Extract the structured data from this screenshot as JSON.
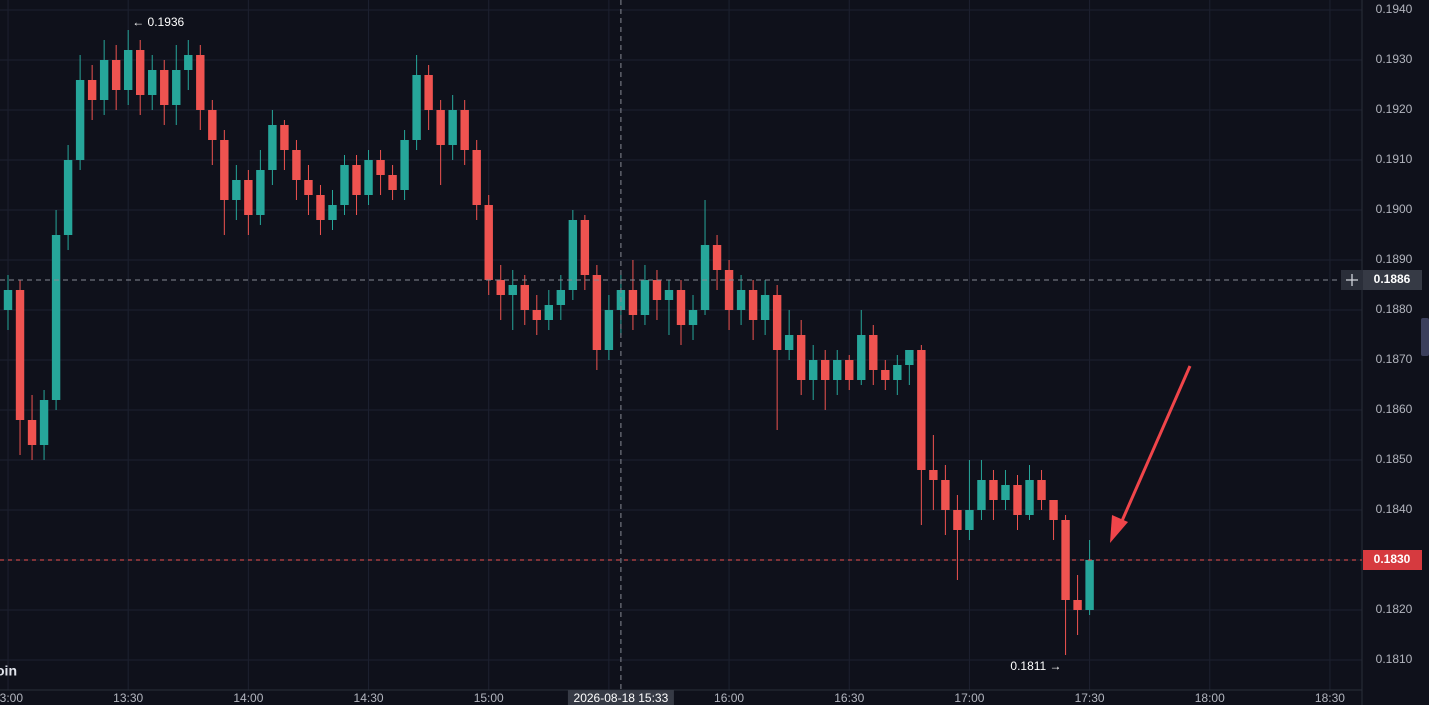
{
  "chart_data": {
    "type": "candlestick",
    "watermark": "oin",
    "colors": {
      "up": "#26a69a",
      "down": "#ef5350"
    },
    "x": [
      "13:00",
      "13:03",
      "13:06",
      "13:09",
      "13:12",
      "13:15",
      "13:18",
      "13:21",
      "13:24",
      "13:27",
      "13:30",
      "13:33",
      "13:36",
      "13:39",
      "13:42",
      "13:45",
      "13:48",
      "13:51",
      "13:54",
      "13:57",
      "14:00",
      "14:03",
      "14:06",
      "14:09",
      "14:12",
      "14:15",
      "14:18",
      "14:21",
      "14:24",
      "14:27",
      "14:30",
      "14:33",
      "14:36",
      "14:39",
      "14:42",
      "14:45",
      "14:48",
      "14:51",
      "14:54",
      "14:57",
      "15:00",
      "15:03",
      "15:06",
      "15:09",
      "15:12",
      "15:15",
      "15:18",
      "15:21",
      "15:24",
      "15:27",
      "15:30",
      "15:33",
      "15:36",
      "15:39",
      "15:42",
      "15:45",
      "15:48",
      "15:51",
      "15:54",
      "15:57",
      "16:00",
      "16:03",
      "16:06",
      "16:09",
      "16:12",
      "16:15",
      "16:18",
      "16:21",
      "16:24",
      "16:27",
      "16:30",
      "16:33",
      "16:36",
      "16:39",
      "16:42",
      "16:45",
      "16:48",
      "16:51",
      "16:54",
      "16:57",
      "17:00",
      "17:03",
      "17:06",
      "17:09",
      "17:12",
      "17:15",
      "17:18",
      "17:21",
      "17:24",
      "17:27",
      "17:30"
    ],
    "open": [
      0.188,
      0.1884,
      0.1858,
      0.1853,
      0.1862,
      0.1895,
      0.191,
      0.1926,
      0.1922,
      0.193,
      0.1924,
      0.1932,
      0.1923,
      0.1928,
      0.1921,
      0.1928,
      0.1931,
      0.192,
      0.1914,
      0.1902,
      0.1906,
      0.1899,
      0.1908,
      0.1917,
      0.1912,
      0.1906,
      0.1903,
      0.1898,
      0.1901,
      0.1909,
      0.1903,
      0.191,
      0.1907,
      0.1904,
      0.1914,
      0.1927,
      0.192,
      0.1913,
      0.192,
      0.1912,
      0.1901,
      0.1886,
      0.1883,
      0.1885,
      0.188,
      0.1878,
      0.1881,
      0.1884,
      0.1898,
      0.1887,
      0.1872,
      0.188,
      0.1884,
      0.1879,
      0.1886,
      0.1882,
      0.1884,
      0.1877,
      0.188,
      0.1893,
      0.1888,
      0.188,
      0.1884,
      0.1878,
      0.1883,
      0.1872,
      0.1875,
      0.1866,
      0.187,
      0.1866,
      0.187,
      0.1866,
      0.1875,
      0.1868,
      0.1866,
      0.1869,
      0.1872,
      0.1848,
      0.1846,
      0.184,
      0.1836,
      0.184,
      0.1846,
      0.1842,
      0.1845,
      0.1839,
      0.1846,
      0.1842,
      0.1838,
      0.1822,
      0.182
    ],
    "high": [
      0.1887,
      0.1886,
      0.1863,
      0.1864,
      0.19,
      0.1913,
      0.1931,
      0.1929,
      0.1934,
      0.1933,
      0.1936,
      0.1934,
      0.1931,
      0.193,
      0.1933,
      0.1934,
      0.1933,
      0.1922,
      0.1916,
      0.1909,
      0.1908,
      0.1912,
      0.192,
      0.1918,
      0.1914,
      0.1909,
      0.1905,
      0.1904,
      0.1911,
      0.1911,
      0.1912,
      0.1912,
      0.1909,
      0.1916,
      0.1931,
      0.1929,
      0.1922,
      0.1923,
      0.1922,
      0.1914,
      0.1903,
      0.1889,
      0.1888,
      0.1887,
      0.1883,
      0.1884,
      0.1887,
      0.19,
      0.1899,
      0.1889,
      0.1883,
      0.1887,
      0.189,
      0.1889,
      0.1888,
      0.1886,
      0.1886,
      0.1883,
      0.1902,
      0.1895,
      0.189,
      0.1887,
      0.1886,
      0.1886,
      0.1885,
      0.188,
      0.1878,
      0.1873,
      0.1872,
      0.1872,
      0.1871,
      0.188,
      0.1877,
      0.187,
      0.1871,
      0.1872,
      0.1873,
      0.1855,
      0.1849,
      0.1843,
      0.185,
      0.185,
      0.1848,
      0.1848,
      0.1847,
      0.1849,
      0.1848,
      0.1841,
      0.1839,
      0.1827,
      0.1834
    ],
    "low": [
      0.1876,
      0.1851,
      0.185,
      0.185,
      0.186,
      0.1892,
      0.1908,
      0.1918,
      0.1919,
      0.192,
      0.1921,
      0.1919,
      0.192,
      0.1917,
      0.1917,
      0.1924,
      0.1916,
      0.1909,
      0.1895,
      0.1898,
      0.1895,
      0.1897,
      0.1905,
      0.1908,
      0.1902,
      0.1899,
      0.1895,
      0.1896,
      0.1899,
      0.1899,
      0.1901,
      0.1903,
      0.1902,
      0.1902,
      0.1912,
      0.1916,
      0.1905,
      0.191,
      0.1909,
      0.1898,
      0.1883,
      0.1878,
      0.1876,
      0.1877,
      0.1875,
      0.1876,
      0.1878,
      0.1882,
      0.1884,
      0.1868,
      0.187,
      0.1875,
      0.1876,
      0.1877,
      0.1878,
      0.1875,
      0.1873,
      0.1874,
      0.1879,
      0.1884,
      0.1876,
      0.1877,
      0.1874,
      0.1875,
      0.1856,
      0.187,
      0.1863,
      0.1862,
      0.186,
      0.1863,
      0.1864,
      0.1865,
      0.1865,
      0.1864,
      0.1863,
      0.1865,
      0.1837,
      0.184,
      0.1835,
      0.1826,
      0.1834,
      0.1838,
      0.1838,
      0.184,
      0.1836,
      0.1838,
      0.184,
      0.1834,
      0.1811,
      0.1815,
      0.1819
    ],
    "close": [
      0.1884,
      0.1858,
      0.1853,
      0.1862,
      0.1895,
      0.191,
      0.1926,
      0.1922,
      0.193,
      0.1924,
      0.1932,
      0.1923,
      0.1928,
      0.1921,
      0.1928,
      0.1931,
      0.192,
      0.1914,
      0.1902,
      0.1906,
      0.1899,
      0.1908,
      0.1917,
      0.1912,
      0.1906,
      0.1903,
      0.1898,
      0.1901,
      0.1909,
      0.1903,
      0.191,
      0.1907,
      0.1904,
      0.1914,
      0.1927,
      0.192,
      0.1913,
      0.192,
      0.1912,
      0.1901,
      0.1886,
      0.1883,
      0.1885,
      0.188,
      0.1878,
      0.1881,
      0.1884,
      0.1898,
      0.1887,
      0.1872,
      0.188,
      0.1884,
      0.1879,
      0.1886,
      0.1882,
      0.1884,
      0.1877,
      0.188,
      0.1893,
      0.1888,
      0.188,
      0.1884,
      0.1878,
      0.1883,
      0.1872,
      0.1875,
      0.1866,
      0.187,
      0.1866,
      0.187,
      0.1866,
      0.1875,
      0.1868,
      0.1866,
      0.1869,
      0.1872,
      0.1848,
      0.1846,
      0.184,
      0.1836,
      0.184,
      0.1846,
      0.1842,
      0.1845,
      0.1839,
      0.1846,
      0.1842,
      0.1838,
      0.1822,
      0.182,
      0.183
    ],
    "xlim": [
      "12:58",
      "18:38"
    ],
    "xticks": [
      "13:00",
      "13:30",
      "14:00",
      "14:30",
      "15:00",
      "15:30",
      "16:00",
      "16:30",
      "17:00",
      "17:30",
      "18:00",
      "18:30"
    ],
    "ylim": [
      0.1804,
      0.1942
    ],
    "yticks": [
      {
        "value": 0.181,
        "label": "0.1810"
      },
      {
        "value": 0.182,
        "label": "0.1820"
      },
      {
        "value": 0.183,
        "label": "0.1830"
      },
      {
        "value": 0.184,
        "label": "0.1840"
      },
      {
        "value": 0.185,
        "label": "0.1850"
      },
      {
        "value": 0.186,
        "label": "0.1860"
      },
      {
        "value": 0.187,
        "label": "0.1870"
      },
      {
        "value": 0.188,
        "label": "0.1880"
      },
      {
        "value": 0.189,
        "label": "0.1890"
      },
      {
        "value": 0.19,
        "label": "0.1900"
      },
      {
        "value": 0.191,
        "label": "0.1910"
      },
      {
        "value": 0.192,
        "label": "0.1920"
      },
      {
        "value": 0.193,
        "label": "0.1930"
      },
      {
        "value": 0.194,
        "label": "0.1940"
      }
    ],
    "grid": true,
    "high_marker": {
      "value": 0.1936,
      "label": "← 0.1936"
    },
    "low_marker": {
      "value": 0.1811,
      "label": "0.1811 →"
    },
    "crosshair": {
      "price": {
        "value": 0.1886,
        "label": "0.1886"
      },
      "time": "2026-08-18 15:33"
    },
    "last_price": {
      "value": 0.183,
      "label": "0.1830"
    }
  }
}
